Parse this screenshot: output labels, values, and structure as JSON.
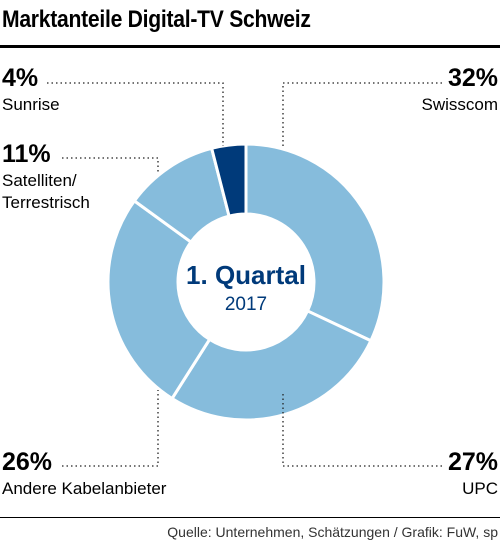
{
  "title": "Marktanteile Digital-TV Schweiz",
  "source": "Quelle: Unternehmen, Schätzungen / Grafik: FuW, sp",
  "colors": {
    "light": "#86bcdc",
    "dark": "#003a7a",
    "text": "#003a7a"
  },
  "chart_data": {
    "type": "pie",
    "variant": "donut",
    "center_label": "1. Quartal",
    "center_sublabel": "2017",
    "slices": [
      {
        "label": "Swisscom",
        "value": 32,
        "value_label": "32%",
        "color": "#86bcdc"
      },
      {
        "label": "UPC",
        "value": 27,
        "value_label": "27%",
        "color": "#86bcdc"
      },
      {
        "label": "Andere Kabelanbieter",
        "value": 26,
        "value_label": "26%",
        "color": "#86bcdc"
      },
      {
        "label": "Satelliten/ Terrestrisch",
        "label_lines": [
          "Satelliten/",
          "Terrestrisch"
        ],
        "value": 11,
        "value_label": "11%",
        "color": "#86bcdc"
      },
      {
        "label": "Sunrise",
        "value": 4,
        "value_label": "4%",
        "color": "#003a7a"
      }
    ]
  }
}
